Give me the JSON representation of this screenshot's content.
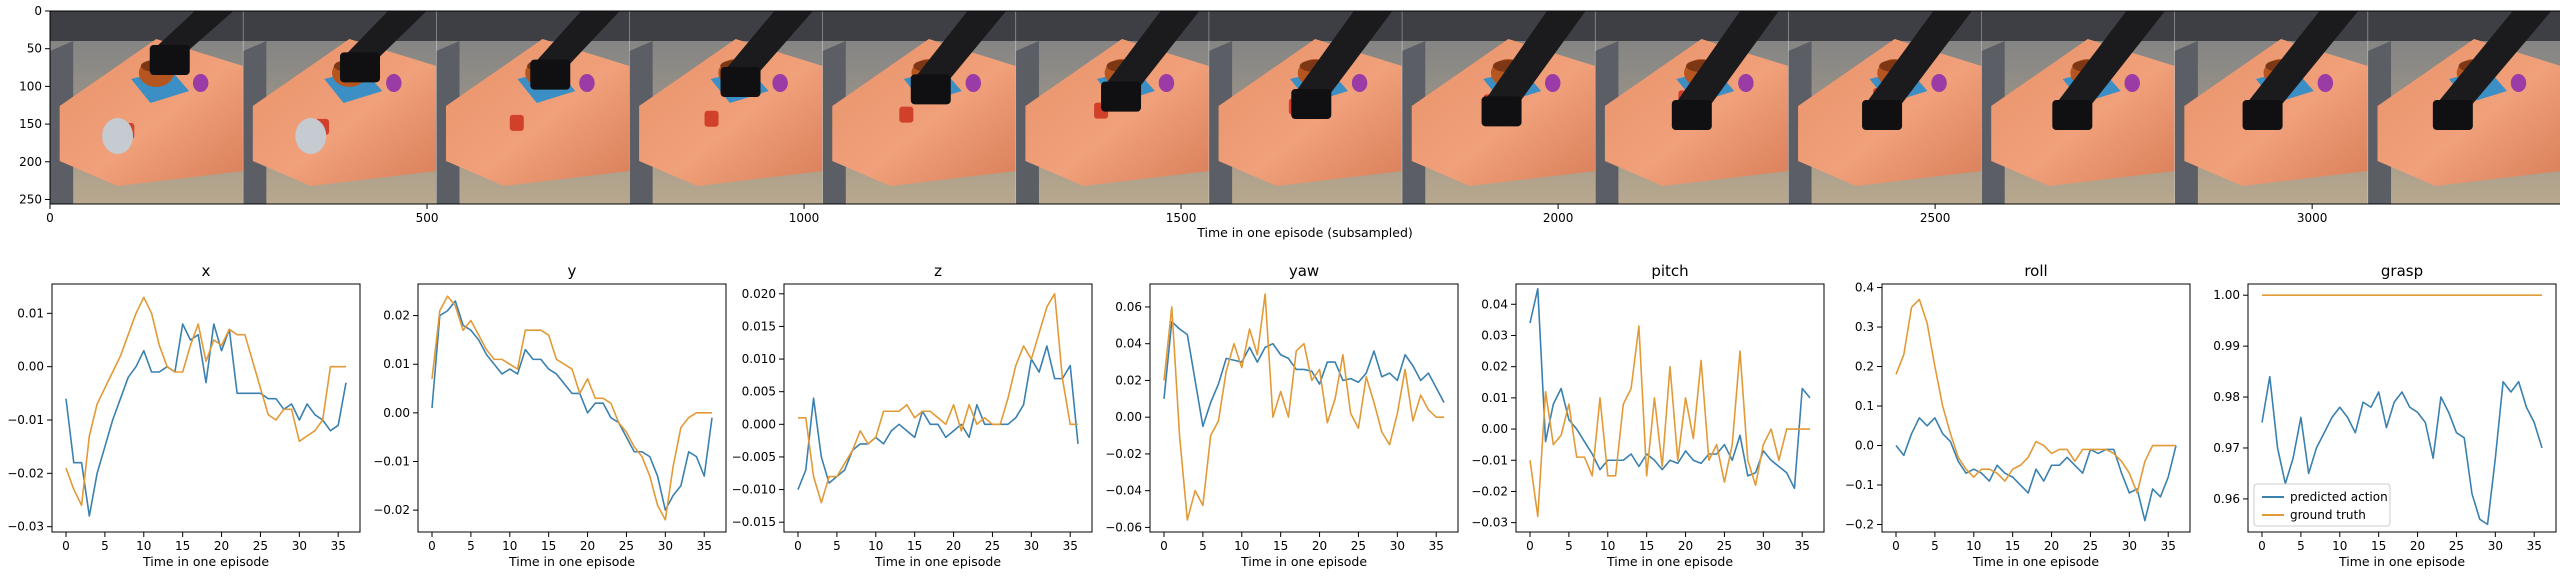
{
  "colors": {
    "predicted": "#3a81b0",
    "ground_truth": "#e29a37",
    "axis": "#000000"
  },
  "image_strip": {
    "xlabel": "Time in one episode (subsampled)",
    "x_ticks": [
      "0",
      "500",
      "1000",
      "1500",
      "2000",
      "2500",
      "3000"
    ],
    "y_ticks": [
      "0",
      "50",
      "100",
      "150",
      "200",
      "250"
    ],
    "x_range": [
      0,
      3330
    ],
    "y_range": [
      0,
      256
    ],
    "frame_count": 13,
    "frames_description": "robot arm grasping objects on a wooden table"
  },
  "legend": {
    "predicted": "predicted action",
    "ground_truth": "ground truth"
  },
  "chart_data": [
    {
      "type": "line",
      "title": "x",
      "xlabel": "Time in one episode",
      "xlim": [
        -1.8,
        37.8
      ],
      "ylim": [
        -0.031,
        0.0155
      ],
      "x_ticks": [
        0,
        5,
        10,
        15,
        20,
        25,
        30,
        35
      ],
      "y_ticks": [
        0.01,
        0.0,
        -0.01,
        -0.02,
        -0.03
      ],
      "y_tick_labels": [
        "0.01",
        "0.00",
        "−0.01",
        "−0.02",
        "−0.03"
      ],
      "series": [
        {
          "name": "predicted action",
          "values": [
            -0.006,
            -0.018,
            -0.018,
            -0.028,
            -0.02,
            -0.015,
            -0.01,
            -0.006,
            -0.002,
            0.0,
            0.003,
            -0.001,
            -0.001,
            0.0,
            -0.001,
            0.008,
            0.005,
            0.006,
            -0.003,
            0.008,
            0.003,
            0.007,
            -0.005,
            -0.005,
            -0.005,
            -0.005,
            -0.006,
            -0.006,
            -0.008,
            -0.007,
            -0.01,
            -0.007,
            -0.009,
            -0.01,
            -0.012,
            -0.011,
            -0.003
          ]
        },
        {
          "name": "ground truth",
          "values": [
            -0.019,
            -0.023,
            -0.026,
            -0.013,
            -0.007,
            -0.004,
            -0.001,
            0.002,
            0.006,
            0.01,
            0.013,
            0.01,
            0.004,
            0.0,
            -0.001,
            -0.001,
            0.004,
            0.008,
            0.001,
            0.005,
            0.004,
            0.007,
            0.006,
            0.006,
            0.001,
            -0.004,
            -0.009,
            -0.01,
            -0.008,
            -0.008,
            -0.014,
            -0.013,
            -0.012,
            -0.01,
            0.0,
            0.0,
            0.0
          ]
        }
      ]
    },
    {
      "type": "line",
      "title": "y",
      "xlabel": "Time in one episode",
      "xlim": [
        -1.8,
        37.8
      ],
      "ylim": [
        -0.0245,
        0.0265
      ],
      "x_ticks": [
        0,
        5,
        10,
        15,
        20,
        25,
        30,
        35
      ],
      "y_ticks": [
        0.02,
        0.01,
        0.0,
        -0.01,
        -0.02
      ],
      "y_tick_labels": [
        "0.02",
        "0.01",
        "0.00",
        "−0.01",
        "−0.02"
      ],
      "series": [
        {
          "name": "predicted action",
          "values": [
            0.001,
            0.02,
            0.021,
            0.023,
            0.018,
            0.017,
            0.015,
            0.012,
            0.01,
            0.008,
            0.009,
            0.008,
            0.013,
            0.011,
            0.011,
            0.009,
            0.008,
            0.006,
            0.004,
            0.004,
            0.0,
            0.002,
            0.002,
            -0.001,
            -0.002,
            -0.005,
            -0.008,
            -0.008,
            -0.009,
            -0.013,
            -0.02,
            -0.017,
            -0.015,
            -0.008,
            -0.009,
            -0.013,
            -0.001
          ]
        },
        {
          "name": "ground truth",
          "values": [
            0.007,
            0.021,
            0.024,
            0.022,
            0.017,
            0.019,
            0.016,
            0.013,
            0.011,
            0.011,
            0.01,
            0.009,
            0.017,
            0.017,
            0.017,
            0.016,
            0.011,
            0.01,
            0.009,
            0.004,
            0.007,
            0.003,
            0.003,
            0.002,
            -0.002,
            -0.004,
            -0.007,
            -0.009,
            -0.013,
            -0.019,
            -0.022,
            -0.011,
            -0.003,
            -0.001,
            0.0,
            0.0,
            0.0
          ]
        }
      ]
    },
    {
      "type": "line",
      "title": "z",
      "xlabel": "Time in one episode",
      "xlim": [
        -1.8,
        37.8
      ],
      "ylim": [
        -0.0165,
        0.0215
      ],
      "x_ticks": [
        0,
        5,
        10,
        15,
        20,
        25,
        30,
        35
      ],
      "y_ticks": [
        0.02,
        0.015,
        0.01,
        0.005,
        0.0,
        -0.005,
        -0.01,
        -0.015
      ],
      "y_tick_labels": [
        "0.020",
        "0.015",
        "0.010",
        "0.005",
        "0.000",
        "−0.005",
        "−0.010",
        "−0.015"
      ],
      "series": [
        {
          "name": "predicted action",
          "values": [
            -0.01,
            -0.007,
            0.004,
            -0.005,
            -0.009,
            -0.008,
            -0.007,
            -0.004,
            -0.003,
            -0.003,
            -0.002,
            -0.003,
            -0.001,
            0.0,
            -0.001,
            -0.002,
            0.002,
            0.0,
            0.0,
            -0.002,
            -0.001,
            0.0,
            -0.002,
            0.003,
            0.0,
            0.0,
            0.0,
            0.0,
            0.001,
            0.003,
            0.01,
            0.008,
            0.012,
            0.007,
            0.007,
            0.009,
            -0.003
          ]
        },
        {
          "name": "ground truth",
          "values": [
            0.001,
            0.001,
            -0.008,
            -0.012,
            -0.008,
            -0.008,
            -0.006,
            -0.004,
            -0.001,
            -0.003,
            -0.002,
            0.002,
            0.002,
            0.002,
            0.003,
            0.001,
            0.002,
            0.002,
            0.001,
            0.0,
            0.003,
            -0.001,
            0.003,
            0.0,
            0.001,
            0.0,
            0.0,
            0.004,
            0.009,
            0.012,
            0.01,
            0.014,
            0.018,
            0.02,
            0.007,
            0.0,
            0.0
          ]
        }
      ]
    },
    {
      "type": "line",
      "title": "yaw",
      "xlabel": "Time in one episode",
      "xlim": [
        -1.8,
        37.8
      ],
      "ylim": [
        -0.0625,
        0.0725
      ],
      "x_ticks": [
        0,
        5,
        10,
        15,
        20,
        25,
        30,
        35
      ],
      "y_ticks": [
        0.06,
        0.04,
        0.02,
        0.0,
        -0.02,
        -0.04,
        -0.06
      ],
      "y_tick_labels": [
        "0.06",
        "0.04",
        "0.02",
        "0.00",
        "−0.02",
        "−0.04",
        "−0.06"
      ],
      "series": [
        {
          "name": "predicted action",
          "values": [
            0.01,
            0.052,
            0.048,
            0.045,
            0.02,
            -0.005,
            0.008,
            0.018,
            0.032,
            0.031,
            0.03,
            0.038,
            0.03,
            0.038,
            0.04,
            0.034,
            0.032,
            0.026,
            0.026,
            0.025,
            0.018,
            0.03,
            0.03,
            0.02,
            0.021,
            0.019,
            0.024,
            0.036,
            0.022,
            0.024,
            0.02,
            0.034,
            0.028,
            0.02,
            0.024,
            0.016,
            0.008
          ]
        },
        {
          "name": "ground truth",
          "values": [
            0.02,
            0.06,
            -0.01,
            -0.056,
            -0.04,
            -0.048,
            -0.01,
            -0.002,
            0.025,
            0.04,
            0.027,
            0.048,
            0.034,
            0.067,
            0.0,
            0.014,
            0.0,
            0.036,
            0.04,
            0.02,
            0.026,
            -0.003,
            0.01,
            0.034,
            0.002,
            -0.006,
            0.022,
            0.008,
            -0.008,
            -0.015,
            0.002,
            0.026,
            -0.002,
            0.012,
            0.004,
            0.0,
            0.0
          ]
        }
      ]
    },
    {
      "type": "line",
      "title": "pitch",
      "xlabel": "Time in one episode",
      "xlim": [
        -1.8,
        37.8
      ],
      "ylim": [
        -0.033,
        0.0465
      ],
      "x_ticks": [
        0,
        5,
        10,
        15,
        20,
        25,
        30,
        35
      ],
      "y_ticks": [
        0.04,
        0.03,
        0.02,
        0.01,
        0.0,
        -0.01,
        -0.02,
        -0.03
      ],
      "y_tick_labels": [
        "0.04",
        "0.03",
        "0.02",
        "0.01",
        "0.00",
        "−0.01",
        "−0.02",
        "−0.03"
      ],
      "series": [
        {
          "name": "predicted action",
          "values": [
            0.034,
            0.045,
            -0.004,
            0.008,
            0.013,
            0.003,
            0.0,
            -0.004,
            -0.008,
            -0.013,
            -0.01,
            -0.01,
            -0.01,
            -0.008,
            -0.012,
            -0.008,
            -0.01,
            -0.013,
            -0.01,
            -0.011,
            -0.007,
            -0.01,
            -0.011,
            -0.008,
            -0.008,
            -0.005,
            -0.01,
            -0.002,
            -0.015,
            -0.014,
            -0.007,
            -0.01,
            -0.012,
            -0.014,
            -0.019,
            0.013,
            0.01
          ]
        },
        {
          "name": "ground truth",
          "values": [
            -0.01,
            -0.028,
            0.012,
            -0.005,
            -0.002,
            0.008,
            -0.009,
            -0.009,
            -0.015,
            0.01,
            -0.015,
            -0.015,
            0.008,
            0.013,
            0.033,
            -0.015,
            0.01,
            -0.012,
            0.02,
            -0.01,
            0.01,
            -0.003,
            0.022,
            -0.01,
            -0.005,
            -0.017,
            -0.005,
            0.025,
            -0.01,
            -0.018,
            -0.005,
            0.0,
            -0.01,
            0.0,
            0.0,
            0.0,
            0.0
          ]
        }
      ]
    },
    {
      "type": "line",
      "title": "roll",
      "xlabel": "Time in one episode",
      "xlim": [
        -1.8,
        37.8
      ],
      "ylim": [
        -0.219,
        0.409
      ],
      "x_ticks": [
        0,
        5,
        10,
        15,
        20,
        25,
        30,
        35
      ],
      "y_ticks": [
        0.4,
        0.3,
        0.2,
        0.1,
        0.0,
        -0.1,
        -0.2
      ],
      "y_tick_labels": [
        "0.4",
        "0.3",
        "0.2",
        "0.1",
        "0.0",
        "−0.1",
        "−0.2"
      ],
      "series": [
        {
          "name": "predicted action",
          "values": [
            0.0,
            -0.025,
            0.03,
            0.07,
            0.05,
            0.07,
            0.03,
            0.01,
            -0.04,
            -0.07,
            -0.06,
            -0.07,
            -0.09,
            -0.05,
            -0.07,
            -0.08,
            -0.1,
            -0.12,
            -0.06,
            -0.09,
            -0.05,
            -0.05,
            -0.03,
            -0.05,
            -0.07,
            -0.01,
            -0.02,
            -0.01,
            -0.01,
            -0.07,
            -0.12,
            -0.11,
            -0.19,
            -0.11,
            -0.13,
            -0.08,
            0.0
          ]
        },
        {
          "name": "ground truth",
          "values": [
            0.18,
            0.23,
            0.35,
            0.37,
            0.31,
            0.2,
            0.1,
            0.03,
            -0.03,
            -0.06,
            -0.08,
            -0.06,
            -0.06,
            -0.07,
            -0.09,
            -0.06,
            -0.05,
            -0.03,
            0.01,
            0.0,
            -0.02,
            -0.01,
            -0.01,
            -0.04,
            -0.01,
            -0.01,
            -0.01,
            -0.01,
            -0.02,
            -0.04,
            -0.07,
            -0.12,
            -0.04,
            0.0,
            0.0,
            0.0,
            0.0
          ]
        }
      ]
    },
    {
      "type": "line",
      "title": "grasp",
      "xlabel": "Time in one episode",
      "xlim": [
        -1.8,
        37.8
      ],
      "ylim": [
        0.9535,
        1.0022
      ],
      "x_ticks": [
        0,
        5,
        10,
        15,
        20,
        25,
        30,
        35
      ],
      "y_ticks": [
        1.0,
        0.99,
        0.98,
        0.97,
        0.96
      ],
      "y_tick_labels": [
        "1.00",
        "0.99",
        "0.98",
        "0.97",
        "0.96"
      ],
      "legend_position": "lower-left",
      "series": [
        {
          "name": "predicted action",
          "values": [
            0.975,
            0.984,
            0.97,
            0.963,
            0.968,
            0.976,
            0.965,
            0.97,
            0.973,
            0.976,
            0.978,
            0.976,
            0.973,
            0.979,
            0.978,
            0.981,
            0.974,
            0.979,
            0.981,
            0.978,
            0.977,
            0.975,
            0.968,
            0.98,
            0.977,
            0.973,
            0.972,
            0.961,
            0.956,
            0.955,
            0.968,
            0.983,
            0.981,
            0.983,
            0.978,
            0.975,
            0.97
          ]
        },
        {
          "name": "ground truth",
          "values": [
            1.0,
            1.0,
            1.0,
            1.0,
            1.0,
            1.0,
            1.0,
            1.0,
            1.0,
            1.0,
            1.0,
            1.0,
            1.0,
            1.0,
            1.0,
            1.0,
            1.0,
            1.0,
            1.0,
            1.0,
            1.0,
            1.0,
            1.0,
            1.0,
            1.0,
            1.0,
            1.0,
            1.0,
            1.0,
            1.0,
            1.0,
            1.0,
            1.0,
            1.0,
            1.0,
            1.0,
            1.0
          ]
        }
      ]
    }
  ]
}
